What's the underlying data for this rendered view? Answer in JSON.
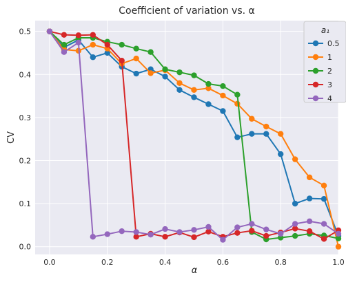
{
  "chart_data": {
    "type": "line",
    "title": "Coefficient of variation vs. α",
    "xlabel": "α",
    "ylabel": "CV",
    "xlim": [
      -0.05,
      1.0
    ],
    "ylim": [
      -0.018,
      0.525
    ],
    "xticks": [
      0.0,
      0.2,
      0.4,
      0.6,
      0.8,
      1.0
    ],
    "xtick_labels": [
      "0.0",
      "0.2",
      "0.4",
      "0.6",
      "0.8",
      "1.0"
    ],
    "yticks": [
      0.0,
      0.1,
      0.2,
      0.3,
      0.4,
      0.5
    ],
    "ytick_labels": [
      "0.0",
      "0.1",
      "0.2",
      "0.3",
      "0.4",
      "0.5"
    ],
    "grid": true,
    "background": "#eaeaf2",
    "legend": {
      "title": "a₁",
      "placement": "top-right"
    },
    "x": [
      0.0,
      0.05,
      0.1,
      0.15,
      0.2,
      0.25,
      0.3,
      0.35,
      0.4,
      0.45,
      0.5,
      0.55,
      0.6,
      0.65,
      0.7,
      0.75,
      0.8,
      0.85,
      0.9,
      0.95,
      1.0
    ],
    "series": [
      {
        "name": "0.5",
        "color": "#1f77b4",
        "values": [
          0.5,
          0.463,
          0.48,
          0.44,
          0.45,
          0.418,
          0.402,
          0.412,
          0.395,
          0.364,
          0.347,
          0.331,
          0.315,
          0.254,
          0.262,
          0.262,
          0.215,
          0.1,
          0.112,
          0.111,
          0.025
        ]
      },
      {
        "name": "1",
        "color": "#ff7f0e",
        "values": [
          0.5,
          0.458,
          0.455,
          0.469,
          0.46,
          0.425,
          0.437,
          0.403,
          0.41,
          0.38,
          0.364,
          0.368,
          0.351,
          0.332,
          0.297,
          0.279,
          0.262,
          0.203,
          0.161,
          0.142,
          0.0
        ]
      },
      {
        "name": "2",
        "color": "#2ca02c",
        "values": [
          0.5,
          0.469,
          0.485,
          0.485,
          0.476,
          0.469,
          0.46,
          0.452,
          0.412,
          0.405,
          0.398,
          0.378,
          0.373,
          0.353,
          0.034,
          0.017,
          0.021,
          0.025,
          0.03,
          0.026,
          0.019
        ]
      },
      {
        "name": "3",
        "color": "#d62728",
        "values": [
          0.5,
          0.492,
          0.491,
          0.492,
          0.469,
          0.432,
          0.023,
          0.03,
          0.023,
          0.033,
          0.022,
          0.035,
          0.023,
          0.032,
          0.037,
          0.025,
          0.033,
          0.042,
          0.036,
          0.018,
          0.038
        ]
      },
      {
        "name": "4",
        "color": "#9467bd",
        "values": [
          0.5,
          0.452,
          0.474,
          0.023,
          0.029,
          0.036,
          0.034,
          0.028,
          0.041,
          0.034,
          0.039,
          0.046,
          0.016,
          0.045,
          0.053,
          0.04,
          0.03,
          0.053,
          0.059,
          0.053,
          0.03
        ]
      }
    ]
  }
}
